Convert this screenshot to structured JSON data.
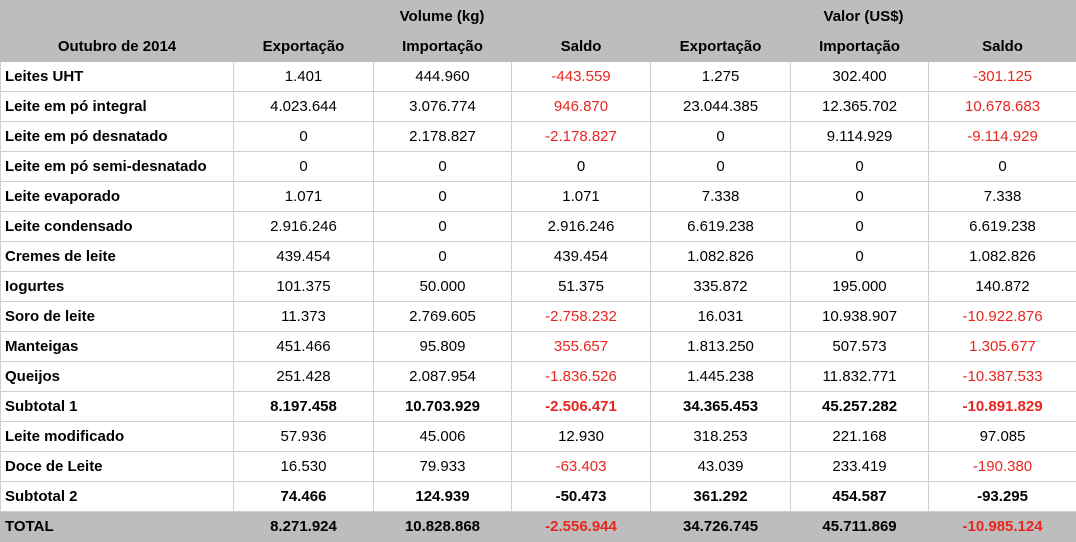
{
  "header": {
    "period": "Outubro de 2014",
    "groups": [
      "Volume (kg)",
      "Valor (US$)"
    ],
    "columns": [
      "Exportação",
      "Importação",
      "Saldo",
      "Exportação",
      "Importação",
      "Saldo"
    ]
  },
  "rows": [
    {
      "label": "Leites UHT",
      "bold": false,
      "values": [
        "1.401",
        "444.960",
        "-443.559",
        "1.275",
        "302.400",
        "-301.125"
      ]
    },
    {
      "label": "Leite em pó integral",
      "bold": false,
      "values": [
        "4.023.644",
        "3.076.774",
        "946.870",
        "23.044.385",
        "12.365.702",
        "10.678.683"
      ]
    },
    {
      "label": "Leite em pó desnatado",
      "bold": false,
      "values": [
        "0",
        "2.178.827",
        "-2.178.827",
        "0",
        "9.114.929",
        "-9.114.929"
      ]
    },
    {
      "label": "Leite em pó semi-desnatado",
      "bold": false,
      "values": [
        "0",
        "0",
        "0",
        "0",
        "0",
        "0"
      ]
    },
    {
      "label": "Leite evaporado",
      "bold": false,
      "values": [
        "1.071",
        "0",
        "1.071",
        "7.338",
        "0",
        "7.338"
      ]
    },
    {
      "label": "Leite condensado",
      "bold": false,
      "values": [
        "2.916.246",
        "0",
        "2.916.246",
        "6.619.238",
        "0",
        "6.619.238"
      ]
    },
    {
      "label": "Cremes de leite",
      "bold": false,
      "values": [
        "439.454",
        "0",
        "439.454",
        "1.082.826",
        "0",
        "1.082.826"
      ]
    },
    {
      "label": "Iogurtes",
      "bold": false,
      "values": [
        "101.375",
        "50.000",
        "51.375",
        "335.872",
        "195.000",
        "140.872"
      ]
    },
    {
      "label": "Soro de leite",
      "bold": false,
      "values": [
        "11.373",
        "2.769.605",
        "-2.758.232",
        "16.031",
        "10.938.907",
        "-10.922.876"
      ]
    },
    {
      "label": "Manteigas",
      "bold": false,
      "values": [
        "451.466",
        "95.809",
        "355.657",
        "1.813.250",
        "507.573",
        "1.305.677"
      ]
    },
    {
      "label": "Queijos",
      "bold": false,
      "values": [
        "251.428",
        "2.087.954",
        "-1.836.526",
        "1.445.238",
        "11.832.771",
        "-10.387.533"
      ]
    },
    {
      "label": "Subtotal 1",
      "bold": true,
      "values": [
        "8.197.458",
        "10.703.929",
        "-2.506.471",
        "34.365.453",
        "45.257.282",
        "-10.891.829"
      ]
    },
    {
      "label": "Leite modificado",
      "bold": false,
      "values": [
        "57.936",
        "45.006",
        "12.930",
        "318.253",
        "221.168",
        "97.085"
      ]
    },
    {
      "label": "Doce de Leite",
      "bold": false,
      "values": [
        "16.530",
        "79.933",
        "-63.403",
        "43.039",
        "233.419",
        "-190.380"
      ]
    },
    {
      "label": "Subtotal 2",
      "bold": true,
      "values": [
        "74.466",
        "124.939",
        "-50.473",
        "361.292",
        "454.587",
        "-93.295"
      ]
    }
  ],
  "total": {
    "label": "TOTAL",
    "values": [
      "8.271.924",
      "10.828.868",
      "-2.556.944",
      "34.726.745",
      "45.711.869",
      "-10.985.124"
    ]
  },
  "colors": {
    "header_bg": "#bdbdbd",
    "negative": "#e8251f",
    "positive_saldo_highlight": "#e8251f"
  },
  "red_cells": {
    "0": [
      2,
      5
    ],
    "1": [
      2,
      5
    ],
    "2": [
      2,
      5
    ],
    "8": [
      2,
      5
    ],
    "9": [
      2,
      5
    ],
    "10": [
      2,
      5
    ],
    "11": [
      2,
      5
    ],
    "13": [
      2,
      5
    ],
    "total": [
      2,
      5
    ]
  }
}
